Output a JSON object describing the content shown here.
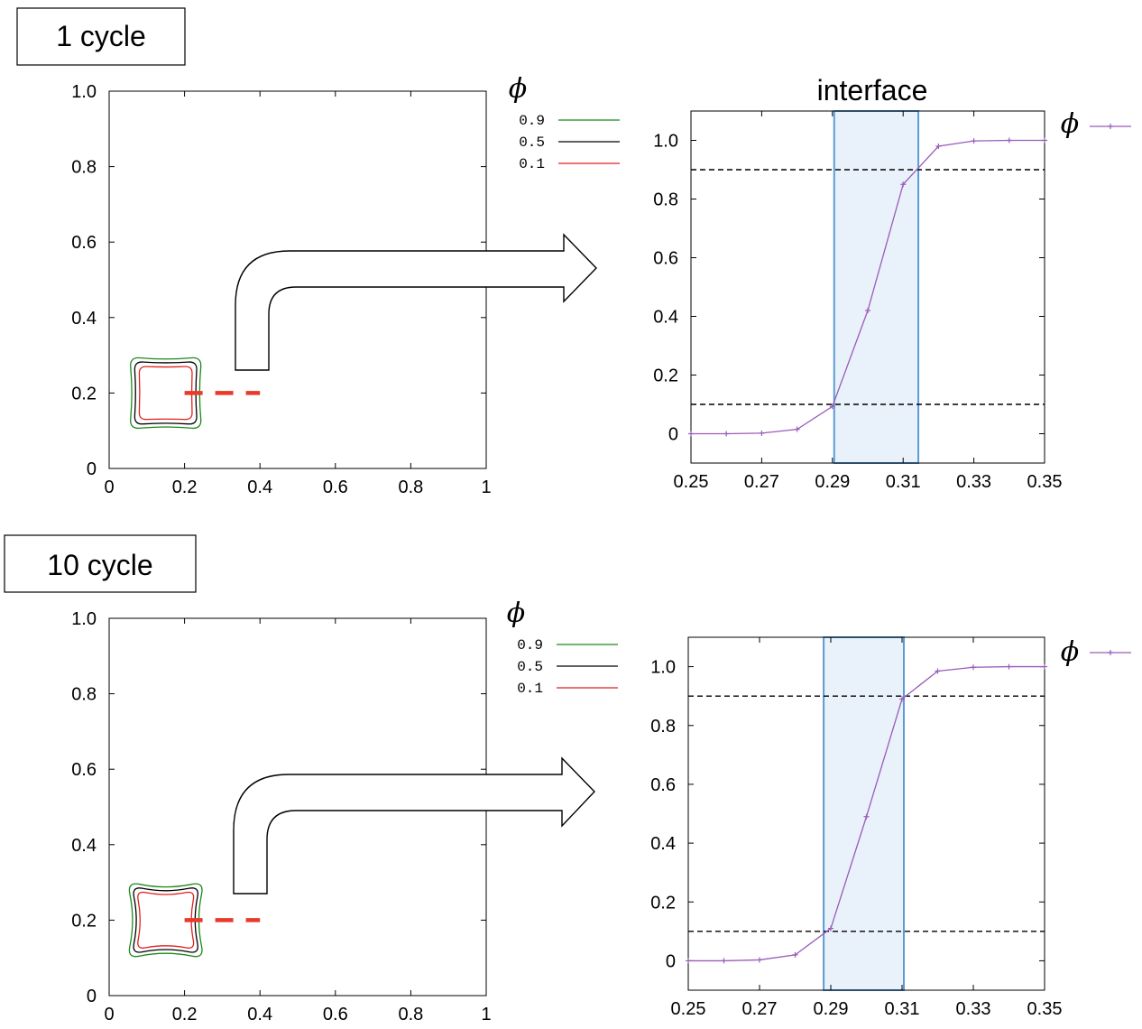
{
  "chart_data": [
    {
      "id": "p1",
      "type": "line",
      "label": "1 cycle",
      "legend_title": "ϕ",
      "xlim": [
        0,
        1
      ],
      "ylim": [
        0,
        1
      ],
      "x_ticks": [
        "0",
        "0.2",
        "0.4",
        "0.6",
        "0.8",
        "1"
      ],
      "y_ticks": [
        "0",
        "0.2",
        "0.4",
        "0.6",
        "0.8",
        "1.0"
      ],
      "series": [
        {
          "name": "0.9",
          "color": "#1a8a1a",
          "half_width": 0.093,
          "bulge": 0.006
        },
        {
          "name": "0.5",
          "color": "#000000",
          "half_width": 0.082,
          "bulge": 0.004
        },
        {
          "name": "0.1",
          "color": "#e02020",
          "half_width": 0.07,
          "bulge": 0.002
        }
      ],
      "center": [
        0.15,
        0.2
      ],
      "sample_line": {
        "x": [
          0.2,
          0.4
        ],
        "y": 0.2,
        "color": "#e8392a"
      }
    },
    {
      "id": "p2",
      "type": "line",
      "title": "interface",
      "legend": "ϕ",
      "xlim": [
        0.25,
        0.35
      ],
      "ylim": [
        -0.1,
        1.1
      ],
      "x_ticks": [
        "0.25",
        "0.27",
        "0.29",
        "0.31",
        "0.33",
        "0.35"
      ],
      "y_ticks": [
        "0",
        "0.2",
        "0.4",
        "0.6",
        "0.8",
        "1.0"
      ],
      "series": [
        {
          "name": "ϕ",
          "color": "#9a5cb8",
          "x": [
            0.25,
            0.26,
            0.27,
            0.28,
            0.29,
            0.3,
            0.31,
            0.32,
            0.33,
            0.34,
            0.35
          ],
          "y": [
            0.0,
            0.0,
            0.002,
            0.015,
            0.093,
            0.42,
            0.85,
            0.98,
            0.998,
            1.0,
            1.0
          ]
        }
      ],
      "hlines": [
        0.9,
        0.1
      ],
      "interface_band": [
        0.2905,
        0.3143
      ]
    },
    {
      "id": "p3",
      "type": "line",
      "label": "10 cycle",
      "legend_title": "ϕ",
      "xlim": [
        0,
        1
      ],
      "ylim": [
        0,
        1
      ],
      "x_ticks": [
        "0",
        "0.2",
        "0.4",
        "0.6",
        "0.8",
        "1"
      ],
      "y_ticks": [
        "0",
        "0.2",
        "0.4",
        "0.6",
        "0.8",
        "1.0"
      ],
      "series": [
        {
          "name": "0.9",
          "color": "#1a8a1a",
          "half_width": 0.095,
          "bulge": 0.014
        },
        {
          "name": "0.5",
          "color": "#000000",
          "half_width": 0.084,
          "bulge": 0.012
        },
        {
          "name": "0.1",
          "color": "#e02020",
          "half_width": 0.073,
          "bulge": 0.01
        }
      ],
      "center": [
        0.15,
        0.2
      ],
      "sample_line": {
        "x": [
          0.2,
          0.4
        ],
        "y": 0.2,
        "color": "#e8392a"
      }
    },
    {
      "id": "p4",
      "type": "line",
      "legend": "ϕ",
      "xlim": [
        0.25,
        0.35
      ],
      "ylim": [
        -0.1,
        1.1
      ],
      "x_ticks": [
        "0.25",
        "0.27",
        "0.29",
        "0.31",
        "0.33",
        "0.35"
      ],
      "y_ticks": [
        "0",
        "0.2",
        "0.4",
        "0.6",
        "0.8",
        "1.0"
      ],
      "series": [
        {
          "name": "ϕ",
          "color": "#9a5cb8",
          "x": [
            0.25,
            0.26,
            0.27,
            0.28,
            0.29,
            0.3,
            0.31,
            0.32,
            0.33,
            0.34,
            0.35
          ],
          "y": [
            0.0,
            0.0,
            0.003,
            0.02,
            0.11,
            0.49,
            0.89,
            0.985,
            0.998,
            1.0,
            1.0
          ]
        }
      ],
      "hlines": [
        0.9,
        0.1
      ],
      "interface_band": [
        0.288,
        0.3105
      ]
    }
  ],
  "colors": {
    "band_fill": "#e9f2fb",
    "band_stroke": "#5b9bd5",
    "dash": "#000000"
  }
}
